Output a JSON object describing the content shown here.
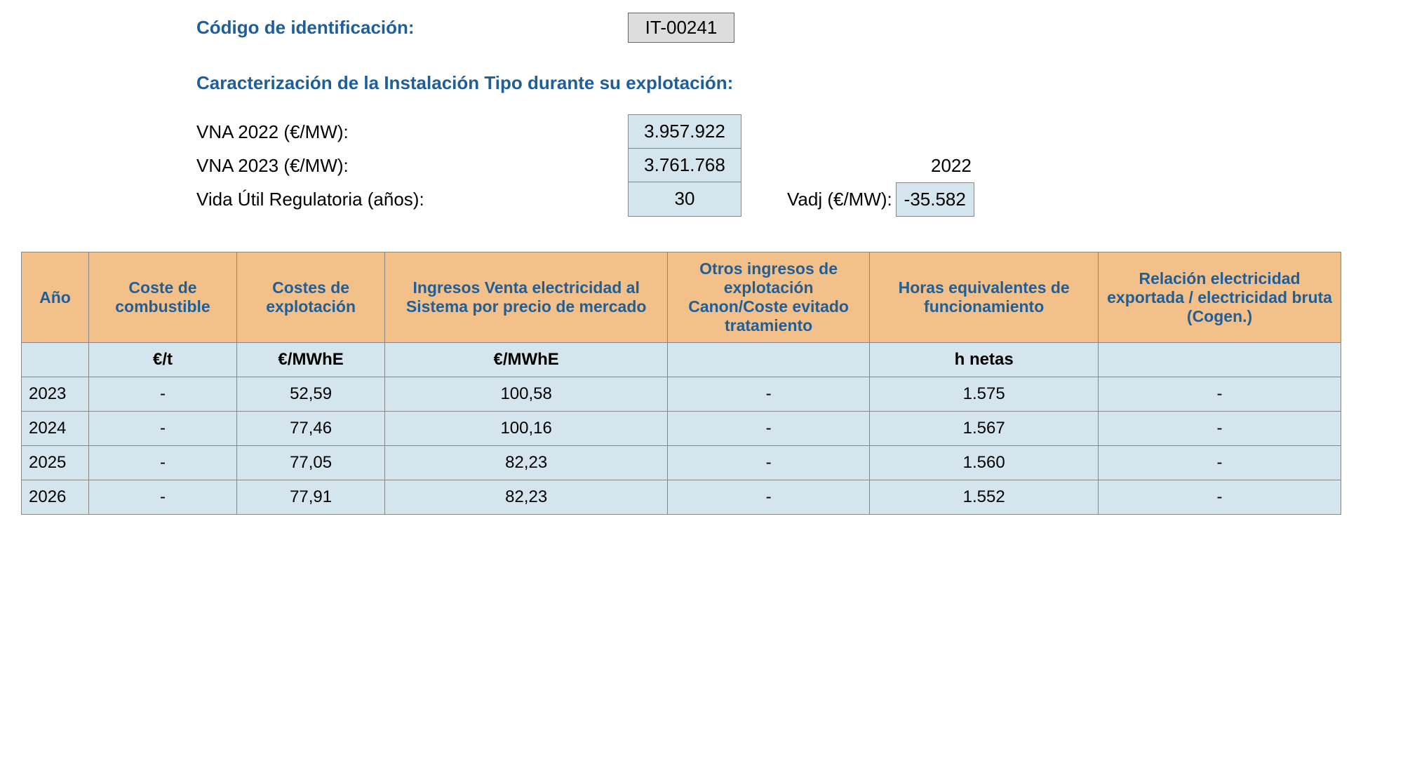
{
  "header": {
    "codigo_label": "Código de identificación:",
    "codigo_value": "IT-00241",
    "caracterizacion_label": "Caracterización de la Instalación Tipo durante su explotación:"
  },
  "vna": {
    "vna2022_label": "VNA 2022 (€/MW):",
    "vna2022_value": "3.957.922",
    "vna2023_label": "VNA 2023 (€/MW):",
    "vna2023_value": "3.761.768",
    "vida_label": "Vida Útil Regulatoria (años):",
    "vida_value": "30",
    "year_text": "2022",
    "vadj_label": "Vadj (€/MW):",
    "vadj_value": "-35.582"
  },
  "table": {
    "headers": {
      "ano": "Año",
      "coste_comb": "Coste de combustible",
      "costes_expl": "Costes de explotación",
      "ingresos": "Ingresos Venta electricidad al Sistema por precio de mercado",
      "otros": "Otros ingresos de explotación Canon/Coste evitado tratamiento",
      "horas": "Horas equivalentes de funcionamiento",
      "relacion": "Relación electricidad exportada / electricidad bruta (Cogen.)"
    },
    "units": {
      "ano": "",
      "coste_comb": "€/t",
      "costes_expl": "€/MWhE",
      "ingresos": "€/MWhE",
      "otros": "",
      "horas": "h netas",
      "relacion": ""
    },
    "widths": {
      "ano": "5%",
      "coste_comb": "11%",
      "costes_expl": "11%",
      "ingresos": "21%",
      "otros": "15%",
      "horas": "17%",
      "relacion": "18%"
    },
    "rows": [
      {
        "ano": "2023",
        "coste_comb": "-",
        "costes_expl": "52,59",
        "ingresos": "100,58",
        "otros": "-",
        "horas": "1.575",
        "relacion": "-"
      },
      {
        "ano": "2024",
        "coste_comb": "-",
        "costes_expl": "77,46",
        "ingresos": "100,16",
        "otros": "-",
        "horas": "1.567",
        "relacion": "-"
      },
      {
        "ano": "2025",
        "coste_comb": "-",
        "costes_expl": "77,05",
        "ingresos": "82,23",
        "otros": "-",
        "horas": "1.560",
        "relacion": "-"
      },
      {
        "ano": "2026",
        "coste_comb": "-",
        "costes_expl": "77,91",
        "ingresos": "82,23",
        "otros": "-",
        "horas": "1.552",
        "relacion": "-"
      }
    ]
  }
}
